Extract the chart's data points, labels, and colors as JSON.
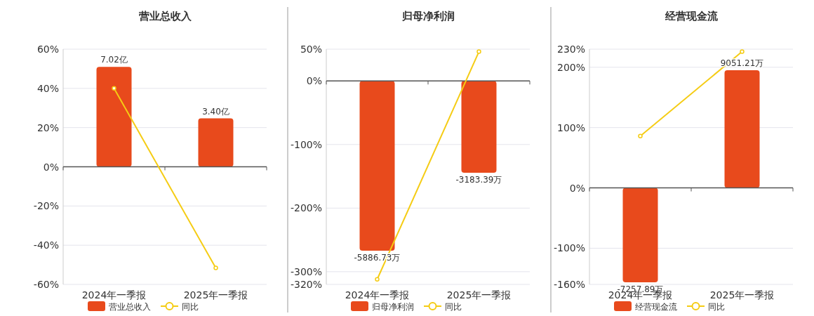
{
  "chart_data": [
    {
      "type": "bar",
      "title": "营业总收入",
      "categories": [
        "2024年一季报",
        "2025年一季报"
      ],
      "series": [
        {
          "name": "营业总收入",
          "axis": "y2",
          "color": "#e84a1c",
          "values": [
            7.02,
            3.4
          ],
          "value_labels": [
            "7.02亿",
            "3.40亿"
          ]
        },
        {
          "name": "同比",
          "type": "line",
          "color": "#f5cc14",
          "values": [
            40,
            -51.6
          ]
        }
      ],
      "marker": "circle",
      "ylim": [
        -60,
        60
      ],
      "yticks": [
        {
          "value": 60,
          "label": "60%"
        },
        {
          "value": 40,
          "label": "40%"
        },
        {
          "value": 20,
          "label": "20%"
        },
        {
          "value": 0,
          "label": "0%"
        },
        {
          "value": -20,
          "label": "-20%"
        },
        {
          "value": -40,
          "label": "-40%"
        },
        {
          "value": -60,
          "label": "-60%"
        }
      ],
      "y2lim": [
        -8.26,
        8.26
      ],
      "tick_labels": "xy",
      "grid": "y",
      "legend": "bottom"
    },
    {
      "type": "bar",
      "title": "归母净利润",
      "categories": [
        "2024年一季报",
        "2025年一季报"
      ],
      "series": [
        {
          "name": "归母净利润",
          "axis": "y2",
          "color": "#e84a1c",
          "values": [
            -5886.73,
            -3183.39
          ],
          "value_labels": [
            "-5886.73万",
            "-3183.39万"
          ]
        },
        {
          "name": "同比",
          "type": "line",
          "color": "#f5cc14",
          "values": [
            -312,
            46
          ]
        }
      ],
      "marker": "circle",
      "ylim": [
        -320,
        50
      ],
      "yticks": [
        {
          "value": 50,
          "label": "50%"
        },
        {
          "value": 0,
          "label": "0%"
        },
        {
          "value": -100,
          "label": "-100%"
        },
        {
          "value": -200,
          "label": "-200%"
        },
        {
          "value": -300,
          "label": "-300%"
        },
        {
          "value": -320,
          "label": "-320%"
        }
      ],
      "y2lim": [
        -7056,
        1102
      ],
      "tick_labels": "xy",
      "grid": "y",
      "legend": "bottom"
    },
    {
      "type": "bar",
      "title": "经营现金流",
      "categories": [
        "2024年一季报",
        "2025年一季报"
      ],
      "series": [
        {
          "name": "经营现金流",
          "axis": "y2",
          "color": "#e84a1c",
          "values": [
            -7257.89,
            9051.21
          ],
          "value_labels": [
            "-7257.89万",
            "9051.21万"
          ]
        },
        {
          "name": "同比",
          "type": "line",
          "color": "#f5cc14",
          "values": [
            86,
            226
          ]
        }
      ],
      "marker": "circle",
      "ylim": [
        -160,
        230
      ],
      "yticks": [
        {
          "value": 230,
          "label": "230%"
        },
        {
          "value": 200,
          "label": "200%"
        },
        {
          "value": 100,
          "label": "100%"
        },
        {
          "value": 0,
          "label": "0%"
        },
        {
          "value": -100,
          "label": "-100%"
        },
        {
          "value": -160,
          "label": "-160%"
        }
      ],
      "y2lim": [
        -7426,
        10675
      ],
      "tick_labels": "xy",
      "grid": "y",
      "legend": "bottom"
    }
  ]
}
